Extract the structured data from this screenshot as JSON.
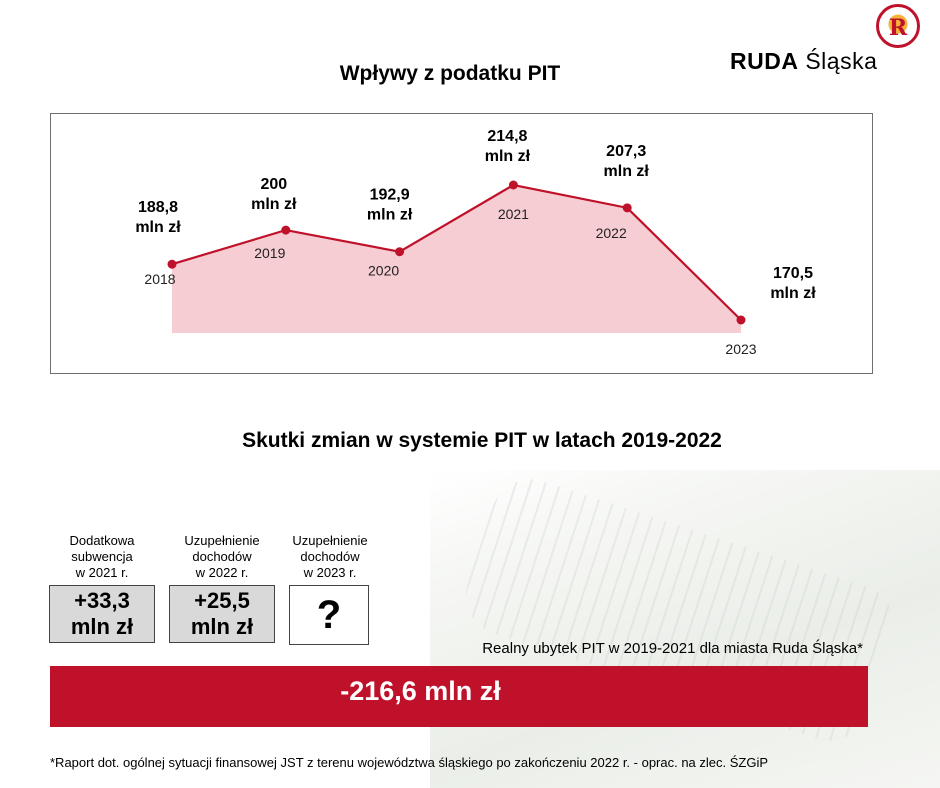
{
  "logo": {
    "text_bold": "RUDA",
    "text_regular": "Śląska"
  },
  "chart_title": "Wpływy z podatku PIT",
  "chart_data": {
    "type": "area",
    "title": "Wpływy z podatku PIT",
    "categories": [
      "2018",
      "2019",
      "2020",
      "2021",
      "2022",
      "2023"
    ],
    "values": [
      188.8,
      200,
      192.9,
      214.8,
      207.3,
      170.5
    ],
    "value_labels": [
      [
        "188,8",
        "mln zł"
      ],
      [
        "200",
        "mln zł"
      ],
      [
        "192,9",
        "mln zł"
      ],
      [
        "214,8",
        "mln zł"
      ],
      [
        "207,3",
        "mln zł"
      ],
      [
        "170,5",
        "mln zł"
      ]
    ],
    "xlabel": "",
    "ylabel": "",
    "ylim": [
      170.5,
      214.8
    ],
    "grid": false,
    "legend": "none",
    "colors": {
      "line": "#c0112a",
      "fill": "#f6cdd3",
      "marker": "#c0112a"
    }
  },
  "section_title": "Skutki zmian w systemie PIT w latach 2019-2022",
  "columns": [
    {
      "label_lines": [
        "Dodatkowa",
        "subwencja",
        "w 2021 r."
      ],
      "value_lines": [
        "+33,3",
        "mln zł"
      ]
    },
    {
      "label_lines": [
        "Uzupełnienie",
        "dochodów",
        "w 2022 r."
      ],
      "value_lines": [
        "+25,5",
        "mln zł"
      ]
    },
    {
      "label_lines": [
        "Uzupełnienie",
        "dochodów",
        "w 2023 r."
      ],
      "value_lines": [
        "?"
      ]
    }
  ],
  "real_loss_label": "Realny ubytek PIT w 2019-2021 dla miasta Ruda Śląska*",
  "real_loss_value": "-216,6 mln zł",
  "footnote": "*Raport dot. ogólnej sytuacji finansowej JST z terenu województwa śląskiego po zakończeniu 2022 r. - oprac. na zlec. ŚZGiP",
  "colors": {
    "accent": "#c0112a",
    "box_grey": "#d9d9d9"
  }
}
